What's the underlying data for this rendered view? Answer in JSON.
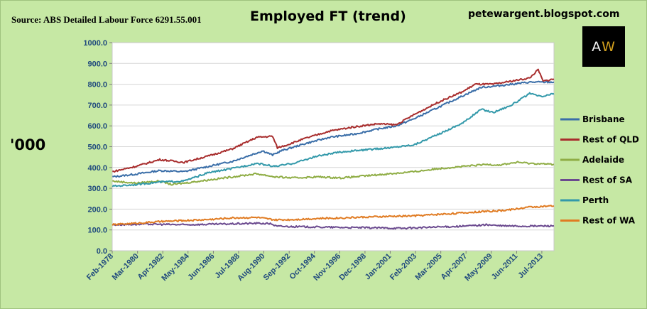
{
  "header": {
    "source": "Source: ABS Detailed Labour Force 6291.55.001",
    "title": "Employed FT (trend)",
    "site": "petewargent.blogspot.com",
    "units": "'000"
  },
  "logo": {
    "text_a": "A",
    "text_w": "W"
  },
  "chart_data": {
    "type": "line",
    "title": "Employed FT (trend)",
    "ylabel": "'000",
    "xlabel": "",
    "ylim": [
      0,
      1000
    ],
    "yticks": [
      "0.0",
      "100.0",
      "200.0",
      "300.0",
      "400.0",
      "500.0",
      "600.0",
      "700.0",
      "800.0",
      "900.0",
      "1000.0"
    ],
    "xlim": [
      1978.08,
      2014.5
    ],
    "xticks": [
      {
        "label": "Feb-1978",
        "x": 1978.08
      },
      {
        "label": "Mar-1980",
        "x": 1980.17
      },
      {
        "label": "Apr-1982",
        "x": 1982.25
      },
      {
        "label": "May-1984",
        "x": 1984.33
      },
      {
        "label": "Jun-1986",
        "x": 1986.42
      },
      {
        "label": "Jul-1988",
        "x": 1988.5
      },
      {
        "label": "Aug-1990",
        "x": 1990.58
      },
      {
        "label": "Sep-1992",
        "x": 1992.67
      },
      {
        "label": "Oct-1994",
        "x": 1994.75
      },
      {
        "label": "Nov-1996",
        "x": 1996.83
      },
      {
        "label": "Dec-1998",
        "x": 1998.92
      },
      {
        "label": "Jan-2001",
        "x": 2001.0
      },
      {
        "label": "Feb-2003",
        "x": 2003.08
      },
      {
        "label": "Mar-2005",
        "x": 2005.17
      },
      {
        "label": "Apr-2007",
        "x": 2007.25
      },
      {
        "label": "May-2009",
        "x": 2009.33
      },
      {
        "label": "Jun-2011",
        "x": 2011.42
      },
      {
        "label": "Jul-2013",
        "x": 2013.5
      }
    ],
    "grid": "horizontal",
    "legend_position": "right",
    "series": [
      {
        "name": "Brisbane",
        "color": "#3a6ea8",
        "points": [
          [
            1978.1,
            355
          ],
          [
            1980,
            368
          ],
          [
            1982,
            385
          ],
          [
            1984,
            380
          ],
          [
            1986,
            405
          ],
          [
            1988,
            430
          ],
          [
            1989.5,
            460
          ],
          [
            1990.5,
            480
          ],
          [
            1991.3,
            460
          ],
          [
            1992,
            480
          ],
          [
            1994,
            515
          ],
          [
            1996,
            545
          ],
          [
            1998,
            560
          ],
          [
            2000,
            585
          ],
          [
            2001.5,
            600
          ],
          [
            2003,
            635
          ],
          [
            2005,
            690
          ],
          [
            2007,
            745
          ],
          [
            2008.5,
            785
          ],
          [
            2009.5,
            790
          ],
          [
            2011,
            800
          ],
          [
            2012.5,
            810
          ],
          [
            2014.5,
            810
          ]
        ]
      },
      {
        "name": "Rest of QLD",
        "color": "#a82d2d",
        "points": [
          [
            1978.1,
            380
          ],
          [
            1980,
            405
          ],
          [
            1982,
            438
          ],
          [
            1984,
            425
          ],
          [
            1986,
            455
          ],
          [
            1988,
            490
          ],
          [
            1990,
            545
          ],
          [
            1991.3,
            550
          ],
          [
            1991.7,
            495
          ],
          [
            1992.3,
            505
          ],
          [
            1994,
            540
          ],
          [
            1996,
            575
          ],
          [
            1998,
            595
          ],
          [
            2000,
            610
          ],
          [
            2001.5,
            605
          ],
          [
            2003,
            655
          ],
          [
            2005,
            715
          ],
          [
            2007,
            765
          ],
          [
            2008,
            800
          ],
          [
            2009.5,
            800
          ],
          [
            2011,
            815
          ],
          [
            2012.5,
            830
          ],
          [
            2013.2,
            870
          ],
          [
            2013.6,
            815
          ],
          [
            2014.5,
            825
          ]
        ]
      },
      {
        "name": "Adelaide",
        "color": "#8fad45",
        "points": [
          [
            1978.1,
            335
          ],
          [
            1980,
            325
          ],
          [
            1982,
            335
          ],
          [
            1983,
            318
          ],
          [
            1984,
            325
          ],
          [
            1986,
            340
          ],
          [
            1988,
            355
          ],
          [
            1990,
            370
          ],
          [
            1991.5,
            355
          ],
          [
            1993,
            350
          ],
          [
            1995,
            355
          ],
          [
            1997,
            350
          ],
          [
            1999,
            360
          ],
          [
            2001,
            370
          ],
          [
            2003,
            380
          ],
          [
            2005,
            395
          ],
          [
            2007,
            405
          ],
          [
            2009,
            415
          ],
          [
            2010,
            412
          ],
          [
            2011.5,
            425
          ],
          [
            2012.5,
            420
          ],
          [
            2014.5,
            415
          ]
        ]
      },
      {
        "name": "Rest of SA",
        "color": "#6b4a8f",
        "points": [
          [
            1978.1,
            125
          ],
          [
            1981,
            128
          ],
          [
            1984,
            125
          ],
          [
            1987,
            128
          ],
          [
            1990,
            132
          ],
          [
            1991.2,
            130
          ],
          [
            1991.6,
            118
          ],
          [
            1994,
            115
          ],
          [
            1997,
            112
          ],
          [
            2000,
            110
          ],
          [
            2002,
            108
          ],
          [
            2004,
            112
          ],
          [
            2007,
            118
          ],
          [
            2009,
            125
          ],
          [
            2010,
            120
          ],
          [
            2012,
            118
          ],
          [
            2014.5,
            120
          ]
        ]
      },
      {
        "name": "Perth",
        "color": "#3399aa",
        "points": [
          [
            1978.1,
            310
          ],
          [
            1980,
            318
          ],
          [
            1982,
            330
          ],
          [
            1984,
            335
          ],
          [
            1986,
            375
          ],
          [
            1988,
            395
          ],
          [
            1990,
            420
          ],
          [
            1991.5,
            405
          ],
          [
            1993,
            420
          ],
          [
            1995,
            455
          ],
          [
            1997,
            475
          ],
          [
            1999,
            485
          ],
          [
            2001,
            495
          ],
          [
            2003,
            510
          ],
          [
            2005,
            560
          ],
          [
            2007,
            615
          ],
          [
            2008.5,
            680
          ],
          [
            2009.5,
            665
          ],
          [
            2011,
            700
          ],
          [
            2012.5,
            755
          ],
          [
            2013.5,
            740
          ],
          [
            2014.5,
            755
          ]
        ]
      },
      {
        "name": "Rest of WA",
        "color": "#e07b22",
        "points": [
          [
            1978.1,
            125
          ],
          [
            1980,
            132
          ],
          [
            1982,
            140
          ],
          [
            1984,
            145
          ],
          [
            1986,
            150
          ],
          [
            1988,
            158
          ],
          [
            1990,
            160
          ],
          [
            1991.5,
            148
          ],
          [
            1993,
            150
          ],
          [
            1995,
            155
          ],
          [
            1997,
            158
          ],
          [
            1999,
            162
          ],
          [
            2001,
            165
          ],
          [
            2003,
            168
          ],
          [
            2005,
            175
          ],
          [
            2007,
            182
          ],
          [
            2009,
            190
          ],
          [
            2010,
            192
          ],
          [
            2011,
            198
          ],
          [
            2012.5,
            210
          ],
          [
            2014.5,
            215
          ]
        ]
      }
    ]
  }
}
